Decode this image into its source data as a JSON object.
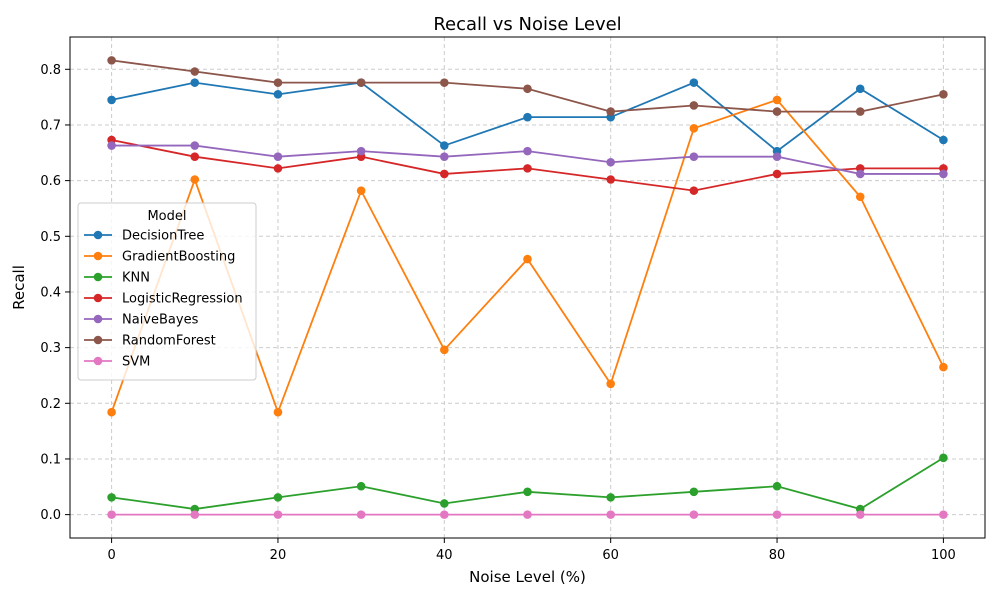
{
  "chart_data": {
    "type": "line",
    "title": "Recall vs Noise Level",
    "xlabel": "Noise Level (%)",
    "ylabel": "Recall",
    "x": [
      0,
      10,
      20,
      30,
      40,
      50,
      60,
      70,
      80,
      90,
      100
    ],
    "xlim": [
      -5,
      105
    ],
    "ylim": [
      -0.042,
      0.858
    ],
    "xticks": [
      0,
      20,
      40,
      60,
      80,
      100
    ],
    "yticks": [
      0.0,
      0.1,
      0.2,
      0.3,
      0.4,
      0.5,
      0.6,
      0.7,
      0.8
    ],
    "grid": true,
    "legend": {
      "title": "Model",
      "placement": "center-left"
    },
    "series": [
      {
        "name": "DecisionTree",
        "color": "#1f77b4",
        "values": [
          0.745,
          0.776,
          0.755,
          0.776,
          0.663,
          0.714,
          0.714,
          0.776,
          0.653,
          0.765,
          0.673
        ]
      },
      {
        "name": "GradientBoosting",
        "color": "#ff7f0e",
        "values": [
          0.184,
          0.602,
          0.184,
          0.582,
          0.296,
          0.459,
          0.235,
          0.694,
          0.745,
          0.571,
          0.265
        ]
      },
      {
        "name": "KNN",
        "color": "#2ca02c",
        "values": [
          0.031,
          0.01,
          0.031,
          0.051,
          0.02,
          0.041,
          0.031,
          0.041,
          0.051,
          0.01,
          0.102
        ]
      },
      {
        "name": "LogisticRegression",
        "color": "#d62728",
        "values": [
          0.673,
          0.643,
          0.622,
          0.643,
          0.612,
          0.622,
          0.602,
          0.582,
          0.612,
          0.622,
          0.622
        ]
      },
      {
        "name": "NaiveBayes",
        "color": "#9467bd",
        "values": [
          0.663,
          0.663,
          0.643,
          0.653,
          0.643,
          0.653,
          0.633,
          0.643,
          0.643,
          0.612,
          0.612
        ]
      },
      {
        "name": "RandomForest",
        "color": "#8c564b",
        "values": [
          0.816,
          0.796,
          0.776,
          0.776,
          0.776,
          0.765,
          0.724,
          0.735,
          0.724,
          0.724,
          0.755
        ]
      },
      {
        "name": "SVM",
        "color": "#e377c2",
        "values": [
          0,
          0,
          0,
          0,
          0,
          0,
          0,
          0,
          0,
          0,
          0
        ]
      }
    ]
  }
}
